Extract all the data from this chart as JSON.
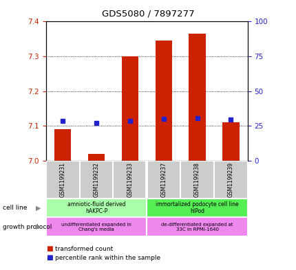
{
  "title": "GDS5080 / 7897277",
  "samples": [
    "GSM1199231",
    "GSM1199232",
    "GSM1199233",
    "GSM1199237",
    "GSM1199238",
    "GSM1199239"
  ],
  "transformed_count": [
    7.09,
    7.02,
    7.3,
    7.345,
    7.365,
    7.11
  ],
  "percentile_rank": [
    28.5,
    27.0,
    28.5,
    30.0,
    30.5,
    29.5
  ],
  "ylim_left": [
    7.0,
    7.4
  ],
  "ylim_right": [
    0,
    100
  ],
  "yticks_left": [
    7.0,
    7.1,
    7.2,
    7.3,
    7.4
  ],
  "yticks_right": [
    0,
    25,
    50,
    75,
    100
  ],
  "bar_color": "#cc2200",
  "dot_color": "#2222cc",
  "cell_line_label1": "amniotic-fluid derived\nhAKPC-P",
  "cell_line_label2": "immortalized podocyte cell line\nhIPod",
  "cell_line_color1": "#aaffaa",
  "cell_line_color2": "#55ee55",
  "growth_color": "#ee88ee",
  "growth_label1": "undifferentiated expanded in\nChang's media",
  "growth_label2": "de-differentiated expanded at\n33C in RPMI-1640",
  "gray_box_color": "#cccccc",
  "bar_width": 0.5
}
